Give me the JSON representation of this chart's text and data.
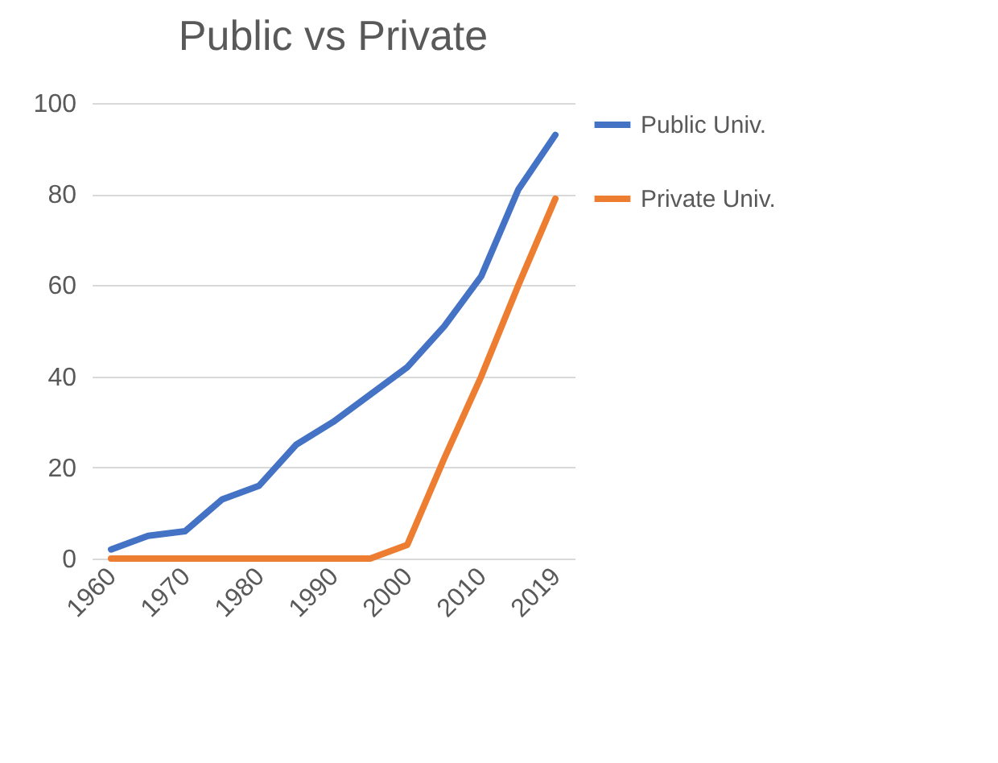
{
  "chart_data": {
    "type": "line",
    "title": "Public vs Private",
    "categories": [
      "1960",
      null,
      "1970",
      null,
      "1980",
      null,
      "1990",
      null,
      "2000",
      null,
      "2010",
      null,
      "2019"
    ],
    "series": [
      {
        "name": "Public Univ.",
        "color": "#4472c4",
        "values": [
          2,
          5,
          6,
          13,
          16,
          25,
          30,
          36,
          42,
          51,
          62,
          81,
          93
        ]
      },
      {
        "name": "Private Univ.",
        "color": "#ed7d31",
        "values": [
          0,
          0,
          0,
          0,
          0,
          0,
          0,
          0,
          3,
          22,
          40,
          60,
          79
        ]
      }
    ],
    "ylim": [
      0,
      100
    ],
    "yticks": [
      0,
      20,
      40,
      60,
      80,
      100
    ],
    "grid": "y",
    "legend": "right",
    "marker": "none",
    "line_style": "solid"
  }
}
